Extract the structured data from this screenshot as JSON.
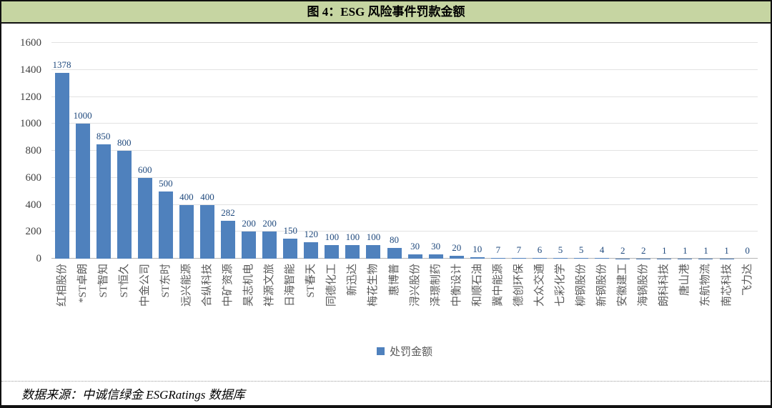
{
  "header": {
    "title": "图 4：ESG 风险事件罚款金额"
  },
  "footer": {
    "source": "数据来源：中诚信绿金 ESGRatings 数据库"
  },
  "colors": {
    "title_bg": "#C6D5A2",
    "bar": "#4F81BD",
    "value_label": "#1F497D",
    "axis_text": "#404040",
    "category_text": "#595959",
    "gridline": "#E2E2E2"
  },
  "chart_data": {
    "type": "bar",
    "title": "图 4：ESG 风险事件罚款金额",
    "legend_label": "处罚金额",
    "legend_position": "bottom",
    "grid": "horizontal",
    "xlabel": "",
    "ylabel": "",
    "ylim": [
      0,
      1600
    ],
    "y_ticks": [
      0,
      200,
      400,
      600,
      800,
      1000,
      1200,
      1400,
      1600
    ],
    "categories": [
      "红相股份",
      "*ST卓朗",
      "ST智知",
      "ST恒久",
      "中金公司",
      "ST东时",
      "远兴能源",
      "合纵科技",
      "中矿资源",
      "昊志机电",
      "祥源文旅",
      "日海智能",
      "ST春天",
      "同德化工",
      "新迅达",
      "梅花生物",
      "惠博普",
      "浔兴股份",
      "泽璟制药",
      "中衡设计",
      "和顺石油",
      "冀中能源",
      "德创环保",
      "大众交通",
      "七彩化学",
      "柳钢股份",
      "新钢股份",
      "安徽建工",
      "海锅股份",
      "朗科科技",
      "唐山港",
      "东航物流",
      "南芯科技",
      "飞力达"
    ],
    "values": [
      1378,
      1000,
      850,
      800,
      600,
      500,
      400,
      400,
      282,
      200,
      200,
      150,
      120,
      100,
      100,
      100,
      80,
      30,
      30,
      20,
      10,
      7,
      7,
      6,
      5,
      5,
      4,
      2,
      2,
      1,
      1,
      1,
      1,
      0
    ]
  }
}
